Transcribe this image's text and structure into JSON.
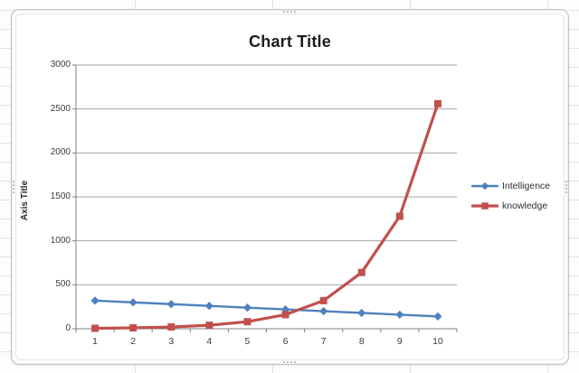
{
  "chart_data": {
    "type": "line",
    "title": "Chart Title",
    "ylabel": "Axis Title",
    "xlabel": "",
    "categories": [
      "1",
      "2",
      "3",
      "4",
      "5",
      "6",
      "7",
      "8",
      "9",
      "10"
    ],
    "series": [
      {
        "name": "Intelligence",
        "color": "#4F81BD",
        "marker": "diamond",
        "values": [
          320,
          300,
          280,
          260,
          240,
          220,
          200,
          180,
          160,
          140
        ]
      },
      {
        "name": "knowledge",
        "color": "#C0504D",
        "marker": "square",
        "values": [
          5,
          10,
          20,
          40,
          80,
          160,
          320,
          640,
          1280,
          2560
        ]
      }
    ],
    "ylim": [
      0,
      3000
    ],
    "ytick_step": 500,
    "yticks": [
      "0",
      "500",
      "1000",
      "1500",
      "2000",
      "2500",
      "3000"
    ],
    "grid": true,
    "legend_position": "right",
    "colors": {
      "gridline": "#a3a3a3",
      "axis": "#7f7f7f",
      "plot_bg": "#ffffff"
    }
  }
}
